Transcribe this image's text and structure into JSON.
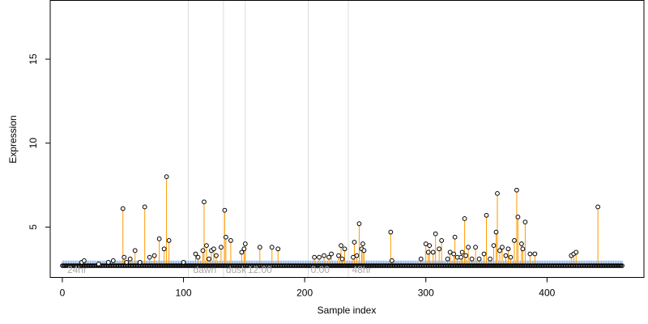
{
  "chart_data": {
    "type": "scatter",
    "xlabel": "Sample index",
    "ylabel": "Expression",
    "xlim": [
      -10,
      480
    ],
    "ylim": [
      2.0,
      18.5
    ],
    "x_ticks": [
      0,
      100,
      200,
      300,
      400
    ],
    "y_ticks": [
      5,
      10,
      15
    ],
    "baseline": 2.7,
    "highlight_band": [
      2.7,
      3.0
    ],
    "colors": {
      "stem": "#ff9900",
      "band": "#87aee3",
      "marker": "#000000",
      "vline": "#dcdcdc",
      "annotation": "#a8a8a8"
    },
    "vlines": [
      104,
      133,
      151,
      203,
      236
    ],
    "annotations": [
      {
        "x": 2,
        "label": "24hr"
      },
      {
        "x": 106,
        "label": "dawn"
      },
      {
        "x": 133,
        "label": "dusk"
      },
      {
        "x": 151,
        "label": "12:00"
      },
      {
        "x": 203,
        "label": "0:00"
      },
      {
        "x": 237,
        "label": "48hr"
      }
    ],
    "points": [
      [
        16,
        2.9
      ],
      [
        18,
        3.0
      ],
      [
        30,
        2.8
      ],
      [
        38,
        2.9
      ],
      [
        42,
        3.0
      ],
      [
        50,
        6.1
      ],
      [
        51,
        3.2
      ],
      [
        53,
        2.9
      ],
      [
        56,
        3.1
      ],
      [
        60,
        3.6
      ],
      [
        64,
        2.9
      ],
      [
        68,
        6.2
      ],
      [
        72,
        3.2
      ],
      [
        76,
        3.3
      ],
      [
        80,
        4.3
      ],
      [
        84,
        3.7
      ],
      [
        86,
        8.0
      ],
      [
        88,
        4.2
      ],
      [
        100,
        2.9
      ],
      [
        110,
        3.4
      ],
      [
        112,
        3.2
      ],
      [
        116,
        3.6
      ],
      [
        117,
        6.5
      ],
      [
        119,
        3.9
      ],
      [
        121,
        3.1
      ],
      [
        123,
        3.6
      ],
      [
        125,
        3.7
      ],
      [
        127,
        3.3
      ],
      [
        131,
        3.8
      ],
      [
        134,
        6.0
      ],
      [
        135,
        4.4
      ],
      [
        139,
        4.2
      ],
      [
        148,
        3.5
      ],
      [
        150,
        3.7
      ],
      [
        151,
        4.0
      ],
      [
        163,
        3.8
      ],
      [
        173,
        3.8
      ],
      [
        178,
        3.7
      ],
      [
        208,
        3.2
      ],
      [
        212,
        3.2
      ],
      [
        216,
        3.3
      ],
      [
        220,
        3.2
      ],
      [
        222,
        3.4
      ],
      [
        228,
        3.3
      ],
      [
        230,
        3.9
      ],
      [
        231,
        3.1
      ],
      [
        233,
        3.7
      ],
      [
        240,
        3.2
      ],
      [
        241,
        4.1
      ],
      [
        243,
        3.3
      ],
      [
        245,
        5.2
      ],
      [
        247,
        3.7
      ],
      [
        248,
        4.0
      ],
      [
        249,
        3.6
      ],
      [
        271,
        4.7
      ],
      [
        272,
        3.0
      ],
      [
        296,
        3.1
      ],
      [
        300,
        4.0
      ],
      [
        302,
        3.5
      ],
      [
        303,
        3.9
      ],
      [
        306,
        3.5
      ],
      [
        308,
        4.6
      ],
      [
        311,
        3.7
      ],
      [
        313,
        4.2
      ],
      [
        318,
        3.1
      ],
      [
        320,
        3.5
      ],
      [
        323,
        3.4
      ],
      [
        324,
        4.4
      ],
      [
        326,
        3.2
      ],
      [
        329,
        3.2
      ],
      [
        330,
        3.5
      ],
      [
        332,
        5.5
      ],
      [
        333,
        3.3
      ],
      [
        335,
        3.8
      ],
      [
        338,
        3.1
      ],
      [
        341,
        3.8
      ],
      [
        344,
        3.1
      ],
      [
        348,
        3.4
      ],
      [
        350,
        5.7
      ],
      [
        353,
        3.1
      ],
      [
        356,
        3.9
      ],
      [
        358,
        4.7
      ],
      [
        359,
        7.0
      ],
      [
        361,
        3.6
      ],
      [
        363,
        3.8
      ],
      [
        366,
        3.3
      ],
      [
        368,
        3.7
      ],
      [
        370,
        3.2
      ],
      [
        373,
        4.2
      ],
      [
        375,
        7.2
      ],
      [
        376,
        5.6
      ],
      [
        379,
        4.0
      ],
      [
        380,
        3.7
      ],
      [
        382,
        5.3
      ],
      [
        386,
        3.4
      ],
      [
        390,
        3.4
      ],
      [
        420,
        3.3
      ],
      [
        422,
        3.4
      ],
      [
        424,
        3.5
      ],
      [
        442,
        6.2
      ]
    ]
  }
}
